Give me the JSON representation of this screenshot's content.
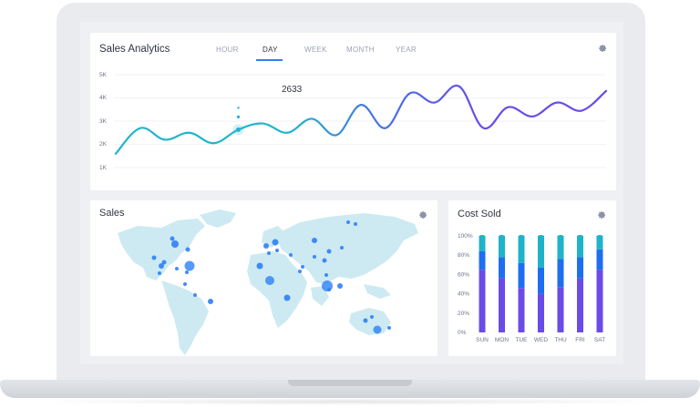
{
  "analytics": {
    "title": "Sales Analytics",
    "tabs": [
      "HOUR",
      "DAY",
      "WEEK",
      "MONTH",
      "YEAR"
    ],
    "active_tab": "DAY",
    "y_ticks": [
      "5K",
      "4K",
      "3K",
      "2K",
      "1K"
    ],
    "highlight_value": "2633",
    "colors": {
      "line_start": "#22b4cc",
      "line_end": "#6a4be8",
      "active_tab": "#2d7ff9"
    }
  },
  "sales": {
    "title": "Sales",
    "colors": {
      "land": "#cdeaf2",
      "dot": "#2d7ff9"
    }
  },
  "cost": {
    "title": "Cost Sold",
    "colors": {
      "top": "#1fb3c9",
      "middle": "#1e6ff0",
      "bottom": "#6a4be8"
    }
  },
  "chart_data": [
    {
      "type": "line",
      "title": "Sales Analytics",
      "ylim": [
        0,
        5000
      ],
      "y_ticks": [
        "1K",
        "2K",
        "3K",
        "4K",
        "5K"
      ],
      "grid": true,
      "highlight": {
        "label": "2633",
        "value": 2633
      },
      "series": [
        {
          "values": [
            1600,
            2700,
            2200,
            2500,
            2050,
            2633,
            2900,
            2500,
            3100,
            2400,
            3700,
            2700,
            4200,
            3800,
            4500,
            2700,
            3600,
            3200,
            3800,
            3450,
            4300
          ]
        }
      ]
    },
    {
      "type": "bar",
      "title": "Cost Sold",
      "categories": [
        "SUN",
        "MON",
        "TUE",
        "WED",
        "THU",
        "FRI",
        "SAT"
      ],
      "y_ticks": [
        "100%",
        "80%",
        "60%",
        "40%",
        "20%",
        "0%"
      ],
      "ylim": [
        0,
        100
      ],
      "series": [
        {
          "name": "",
          "values": [
            65,
            56,
            46,
            40,
            47,
            56,
            65
          ]
        },
        {
          "name": "",
          "values": [
            19,
            22,
            26,
            27,
            29,
            22,
            21
          ]
        },
        {
          "name": "",
          "values": [
            16,
            22,
            28,
            33,
            24,
            22,
            14
          ]
        }
      ]
    }
  ]
}
